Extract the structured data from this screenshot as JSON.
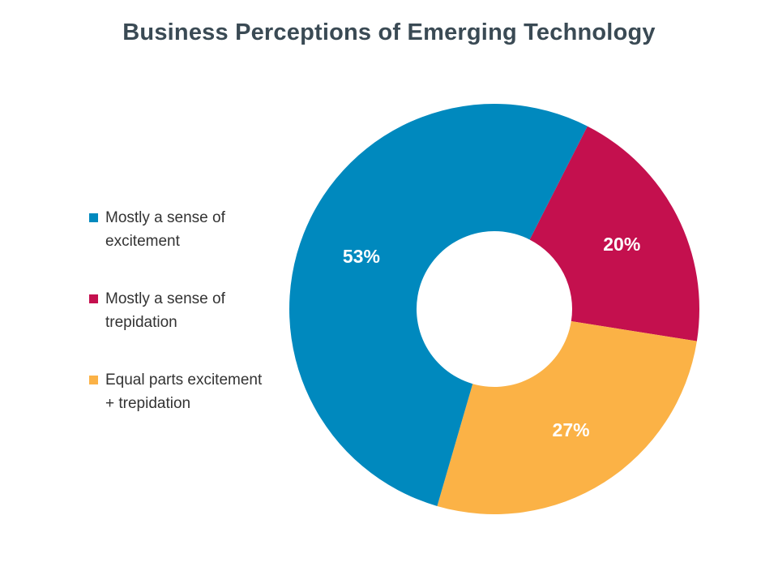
{
  "chart_data": {
    "type": "pie",
    "title": "Business Perceptions of Emerging Technology",
    "donut": true,
    "legend_position": "left",
    "slices": [
      {
        "label": "Mostly a sense of excitement",
        "value": 53,
        "display": "53%",
        "color": "#0089be"
      },
      {
        "label": "Mostly a sense of trepidation",
        "value": 20,
        "display": "20%",
        "color": "#c4104e"
      },
      {
        "label": "Equal parts excitement + trepidation",
        "value": 27,
        "display": "27%",
        "color": "#fbb246"
      }
    ]
  }
}
